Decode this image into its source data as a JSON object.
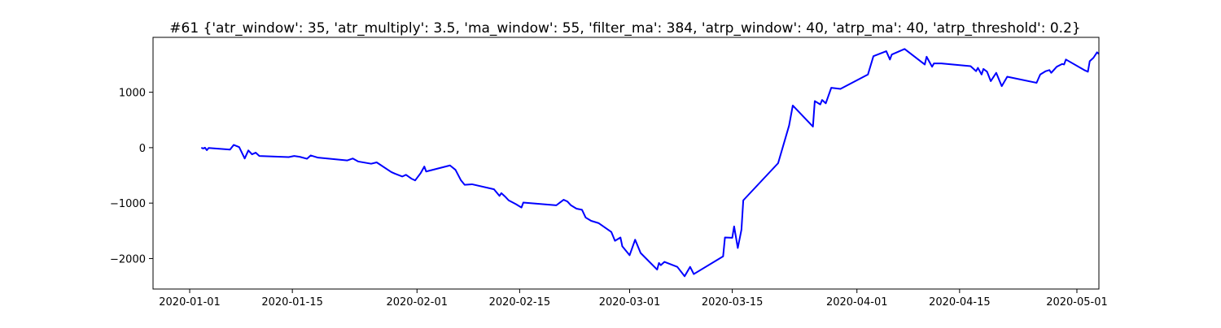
{
  "chart_data": {
    "type": "line",
    "title": "#61 {'atr_window': 35, 'atr_multiply': 3.5, 'ma_window': 55, 'filter_ma': 384, 'atrp_window': 40, 'atrp_ma': 40, 'atrp_threshold': 0.2}",
    "xlabel": "",
    "ylabel": "",
    "x_type": "date",
    "xlim": [
      "2019-12-27T00:00",
      "2020-05-04T00:00"
    ],
    "ylim": [
      -2550,
      1990
    ],
    "x_ticks": [
      "2020-01-01",
      "2020-01-15",
      "2020-02-01",
      "2020-02-15",
      "2020-03-01",
      "2020-03-15",
      "2020-04-01",
      "2020-04-15",
      "2020-05-01"
    ],
    "y_ticks": [
      -2000,
      -1000,
      0,
      1000
    ],
    "y_tick_labels": [
      "−2000",
      "−1000",
      "0",
      "1000"
    ],
    "grid": false,
    "legend": false,
    "series": [
      {
        "color": "#0000ff",
        "points": [
          [
            "2020-01-02T14:00",
            0
          ],
          [
            "2020-01-02T20:00",
            -15
          ],
          [
            "2020-01-03T02:00",
            0
          ],
          [
            "2020-01-03T08:00",
            -45
          ],
          [
            "2020-01-03T14:00",
            -5
          ],
          [
            "2020-01-06T12:00",
            -35
          ],
          [
            "2020-01-07T00:00",
            50
          ],
          [
            "2020-01-07T18:00",
            10
          ],
          [
            "2020-01-08T12:00",
            -195
          ],
          [
            "2020-01-09T00:00",
            -50
          ],
          [
            "2020-01-09T12:00",
            -120
          ],
          [
            "2020-01-10T00:00",
            -90
          ],
          [
            "2020-01-10T12:00",
            -150
          ],
          [
            "2020-01-14T12:00",
            -170
          ],
          [
            "2020-01-15T06:00",
            -150
          ],
          [
            "2020-01-16T00:00",
            -165
          ],
          [
            "2020-01-17T00:00",
            -200
          ],
          [
            "2020-01-17T12:00",
            -140
          ],
          [
            "2020-01-18T12:00",
            -180
          ],
          [
            "2020-01-22T12:00",
            -230
          ],
          [
            "2020-01-23T06:00",
            -195
          ],
          [
            "2020-01-24T00:00",
            -250
          ],
          [
            "2020-01-25T18:00",
            -290
          ],
          [
            "2020-01-26T12:00",
            -265
          ],
          [
            "2020-01-28T12:00",
            -440
          ],
          [
            "2020-01-29T00:00",
            -470
          ],
          [
            "2020-01-30T00:00",
            -520
          ],
          [
            "2020-01-30T12:00",
            -490
          ],
          [
            "2020-01-31T06:00",
            -560
          ],
          [
            "2020-01-31T18:00",
            -590
          ],
          [
            "2020-02-01T12:00",
            -460
          ],
          [
            "2020-02-02T00:00",
            -340
          ],
          [
            "2020-02-02T06:00",
            -430
          ],
          [
            "2020-02-05T12:00",
            -320
          ],
          [
            "2020-02-06T06:00",
            -400
          ],
          [
            "2020-02-07T00:00",
            -590
          ],
          [
            "2020-02-07T12:00",
            -670
          ],
          [
            "2020-02-08T12:00",
            -660
          ],
          [
            "2020-02-11T12:00",
            -750
          ],
          [
            "2020-02-12T06:00",
            -870
          ],
          [
            "2020-02-12T12:00",
            -820
          ],
          [
            "2020-02-13T00:00",
            -880
          ],
          [
            "2020-02-13T12:00",
            -950
          ],
          [
            "2020-02-14T12:00",
            -1020
          ],
          [
            "2020-02-15T06:00",
            -1080
          ],
          [
            "2020-02-15T12:00",
            -990
          ],
          [
            "2020-02-20T00:00",
            -1040
          ],
          [
            "2020-02-20T12:00",
            -990
          ],
          [
            "2020-02-21T00:00",
            -940
          ],
          [
            "2020-02-21T12:00",
            -970
          ],
          [
            "2020-02-22T00:00",
            -1040
          ],
          [
            "2020-02-22T18:00",
            -1100
          ],
          [
            "2020-02-23T12:00",
            -1120
          ],
          [
            "2020-02-24T00:00",
            -1260
          ],
          [
            "2020-02-24T18:00",
            -1320
          ],
          [
            "2020-02-25T06:00",
            -1340
          ],
          [
            "2020-02-25T18:00",
            -1360
          ],
          [
            "2020-02-27T12:00",
            -1520
          ],
          [
            "2020-02-28T00:00",
            -1680
          ],
          [
            "2020-02-28T18:00",
            -1620
          ],
          [
            "2020-02-29T00:00",
            -1780
          ],
          [
            "2020-03-01T00:00",
            -1940
          ],
          [
            "2020-03-01T18:00",
            -1660
          ],
          [
            "2020-03-02T12:00",
            -1900
          ],
          [
            "2020-03-04T18:00",
            -2200
          ],
          [
            "2020-03-05T00:00",
            -2080
          ],
          [
            "2020-03-05T06:00",
            -2120
          ],
          [
            "2020-03-05T18:00",
            -2060
          ],
          [
            "2020-03-07T12:00",
            -2150
          ],
          [
            "2020-03-08T12:00",
            -2320
          ],
          [
            "2020-03-09T06:00",
            -2150
          ],
          [
            "2020-03-09T18:00",
            -2280
          ],
          [
            "2020-03-13T18:00",
            -1960
          ],
          [
            "2020-03-14T00:00",
            -1620
          ],
          [
            "2020-03-15T00:00",
            -1625
          ],
          [
            "2020-03-15T06:00",
            -1420
          ],
          [
            "2020-03-15T18:00",
            -1810
          ],
          [
            "2020-03-16T06:00",
            -1480
          ],
          [
            "2020-03-16T12:00",
            -950
          ],
          [
            "2020-03-21T06:00",
            -280
          ],
          [
            "2020-03-22T18:00",
            400
          ],
          [
            "2020-03-23T06:00",
            760
          ],
          [
            "2020-03-26T00:00",
            380
          ],
          [
            "2020-03-26T06:00",
            840
          ],
          [
            "2020-03-27T00:00",
            780
          ],
          [
            "2020-03-27T06:00",
            860
          ],
          [
            "2020-03-27T18:00",
            800
          ],
          [
            "2020-03-28T12:00",
            1080
          ],
          [
            "2020-03-29T18:00",
            1060
          ],
          [
            "2020-04-02T12:00",
            1320
          ],
          [
            "2020-04-03T06:00",
            1650
          ],
          [
            "2020-04-05T00:00",
            1740
          ],
          [
            "2020-04-05T12:00",
            1590
          ],
          [
            "2020-04-05T18:00",
            1680
          ],
          [
            "2020-04-07T12:00",
            1780
          ],
          [
            "2020-04-10T06:00",
            1500
          ],
          [
            "2020-04-10T12:00",
            1640
          ],
          [
            "2020-04-11T06:00",
            1460
          ],
          [
            "2020-04-11T12:00",
            1520
          ],
          [
            "2020-04-12T12:00",
            1520
          ],
          [
            "2020-04-16T12:00",
            1470
          ],
          [
            "2020-04-17T06:00",
            1380
          ],
          [
            "2020-04-17T12:00",
            1440
          ],
          [
            "2020-04-18T00:00",
            1320
          ],
          [
            "2020-04-18T06:00",
            1420
          ],
          [
            "2020-04-18T18:00",
            1370
          ],
          [
            "2020-04-19T06:00",
            1200
          ],
          [
            "2020-04-20T00:00",
            1350
          ],
          [
            "2020-04-20T18:00",
            1110
          ],
          [
            "2020-04-21T12:00",
            1280
          ],
          [
            "2020-04-25T12:00",
            1170
          ],
          [
            "2020-04-26T00:00",
            1320
          ],
          [
            "2020-04-26T18:00",
            1380
          ],
          [
            "2020-04-27T06:00",
            1400
          ],
          [
            "2020-04-27T12:00",
            1350
          ],
          [
            "2020-04-28T06:00",
            1460
          ],
          [
            "2020-04-29T00:00",
            1510
          ],
          [
            "2020-04-29T06:00",
            1500
          ],
          [
            "2020-04-29T12:00",
            1590
          ],
          [
            "2020-05-02T00:00",
            1400
          ],
          [
            "2020-05-02T12:00",
            1370
          ],
          [
            "2020-05-02T18:00",
            1560
          ],
          [
            "2020-05-03T06:00",
            1620
          ],
          [
            "2020-05-03T18:00",
            1720
          ],
          [
            "2020-05-04T00:00",
            1690
          ]
        ]
      }
    ]
  }
}
